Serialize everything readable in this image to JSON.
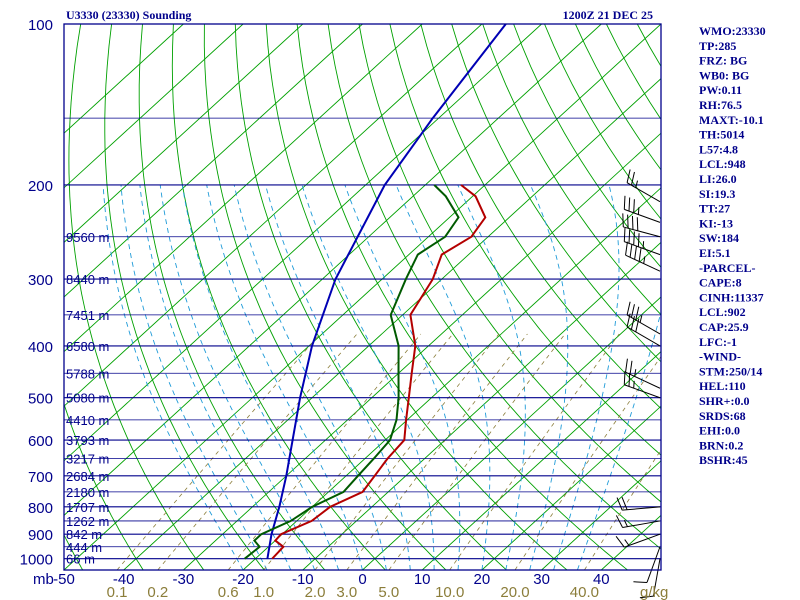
{
  "header": {
    "title": "U3330 (23330) Sounding",
    "time": "1200Z 21 DEC 25"
  },
  "indices": [
    "WMO:23330",
    "TP:285",
    "FRZ: BG",
    "WB0: BG",
    "PW:0.11",
    "RH:76.5",
    "MAXT:-10.1",
    "TH:5014",
    "L57:4.8",
    "LCL:948",
    "LI:26.0",
    "SI:19.3",
    "TT:27",
    "KI:-13",
    "SW:184",
    "EI:5.1",
    "-PARCEL-",
    "CAPE:8",
    "CINH:11337",
    "LCL:902",
    "CAP:25.9",
    "LFC:-1",
    "-WIND-",
    "STM:250/14",
    "HEL:110",
    "SHR+:0.0",
    "SRDS:68",
    "EHI:0.0",
    "BRN:0.2",
    "BSHR:45"
  ],
  "colors": {
    "background": "#ffffff",
    "frame": "#00008b",
    "isobar": "#00008b",
    "isotherm": "#00a000",
    "dry_adiabat": "#00a000",
    "moist_adiabat": "#1f9bd8",
    "mixing_ratio": "#8b7d3a",
    "temperature": "#b40000",
    "dewpoint": "#005a00",
    "parcel": "#0000b4",
    "wind_barb": "#000000"
  },
  "chart_data": {
    "type": "line",
    "diagram": "skew-T log-P",
    "pressure_unit_label": "mb",
    "mixing_ratio_unit_label": "g/kg",
    "pressure_levels": [
      100,
      200,
      300,
      400,
      500,
      600,
      700,
      800,
      900,
      1000
    ],
    "height_labels": [
      {
        "p": 250,
        "h": "9560 m"
      },
      {
        "p": 300,
        "h": "8440 m"
      },
      {
        "p": 350,
        "h": "7451 m"
      },
      {
        "p": 400,
        "h": "6580 m"
      },
      {
        "p": 450,
        "h": "5788 m"
      },
      {
        "p": 500,
        "h": "5080 m"
      },
      {
        "p": 550,
        "h": "4410 m"
      },
      {
        "p": 600,
        "h": "3793 m"
      },
      {
        "p": 650,
        "h": "3217 m"
      },
      {
        "p": 700,
        "h": "2684 m"
      },
      {
        "p": 750,
        "h": "2180 m"
      },
      {
        "p": 800,
        "h": "1707 m"
      },
      {
        "p": 850,
        "h": "1262 m"
      },
      {
        "p": 900,
        "h": "842 m"
      },
      {
        "p": 950,
        "h": "444 m"
      },
      {
        "p": 1000,
        "h": "66 m"
      }
    ],
    "temperature_ticks": [
      -50,
      -40,
      -30,
      -20,
      -10,
      0,
      10,
      20,
      30,
      40
    ],
    "mixing_ratio_ticks": [
      "0.1",
      "0.2",
      "0.6",
      "1.0",
      "2.0",
      "3.0",
      "5.0",
      "10.0",
      "20.0",
      "40.0"
    ],
    "xlim_celsius_at_1050mb": [
      -50,
      50
    ],
    "ylim_mb": [
      100,
      1050
    ],
    "temperature": [
      {
        "p": 1000,
        "t": -17.2
      },
      {
        "p": 950,
        "t": -17.5
      },
      {
        "p": 925,
        "t": -20.0
      },
      {
        "p": 900,
        "t": -20.2
      },
      {
        "p": 850,
        "t": -17.5
      },
      {
        "p": 800,
        "t": -17.0
      },
      {
        "p": 750,
        "t": -14.3
      },
      {
        "p": 700,
        "t": -15.2
      },
      {
        "p": 650,
        "t": -16.2
      },
      {
        "p": 600,
        "t": -16.8
      },
      {
        "p": 550,
        "t": -20.2
      },
      {
        "p": 500,
        "t": -23.8
      },
      {
        "p": 450,
        "t": -27.8
      },
      {
        "p": 400,
        "t": -32.2
      },
      {
        "p": 350,
        "t": -38.7
      },
      {
        "p": 300,
        "t": -41.5
      },
      {
        "p": 270,
        "t": -44.5
      },
      {
        "p": 250,
        "t": -42.8
      },
      {
        "p": 230,
        "t": -44.0
      },
      {
        "p": 210,
        "t": -49.5
      },
      {
        "p": 200,
        "t": -54.0
      }
    ],
    "dewpoint": [
      {
        "p": 1000,
        "t": -21.8
      },
      {
        "p": 950,
        "t": -21.5
      },
      {
        "p": 925,
        "t": -23.5
      },
      {
        "p": 900,
        "t": -23.5
      },
      {
        "p": 850,
        "t": -21.0
      },
      {
        "p": 800,
        "t": -20.0
      },
      {
        "p": 750,
        "t": -17.5
      },
      {
        "p": 700,
        "t": -18.0
      },
      {
        "p": 650,
        "t": -18.5
      },
      {
        "p": 600,
        "t": -19.2
      },
      {
        "p": 550,
        "t": -21.8
      },
      {
        "p": 500,
        "t": -25.5
      },
      {
        "p": 450,
        "t": -30.0
      },
      {
        "p": 400,
        "t": -35.0
      },
      {
        "p": 350,
        "t": -42.0
      },
      {
        "p": 300,
        "t": -46.0
      },
      {
        "p": 270,
        "t": -48.5
      },
      {
        "p": 250,
        "t": -47.2
      },
      {
        "p": 230,
        "t": -48.5
      },
      {
        "p": 210,
        "t": -54.5
      },
      {
        "p": 200,
        "t": -58.5
      }
    ],
    "parcel": [
      {
        "p": 100,
        "t": -76
      },
      {
        "p": 150,
        "t": -71
      },
      {
        "p": 200,
        "t": -66.8
      },
      {
        "p": 300,
        "t": -57.8
      },
      {
        "p": 400,
        "t": -49.5
      },
      {
        "p": 500,
        "t": -42
      },
      {
        "p": 600,
        "t": -35.5
      },
      {
        "p": 700,
        "t": -30
      },
      {
        "p": 800,
        "t": -25.5
      },
      {
        "p": 900,
        "t": -21.8
      },
      {
        "p": 1000,
        "t": -18
      }
    ],
    "wind_barbs": [
      {
        "p": 1000,
        "dir": 190,
        "spd": 10
      },
      {
        "p": 950,
        "dir": 200,
        "spd": 10
      },
      {
        "p": 900,
        "dir": 250,
        "spd": 15
      },
      {
        "p": 850,
        "dir": 260,
        "spd": 15
      },
      {
        "p": 800,
        "dir": 265,
        "spd": 20
      },
      {
        "p": 500,
        "dir": 290,
        "spd": 25
      },
      {
        "p": 480,
        "dir": 295,
        "spd": 25
      },
      {
        "p": 400,
        "dir": 300,
        "spd": 30
      },
      {
        "p": 380,
        "dir": 300,
        "spd": 35
      },
      {
        "p": 290,
        "dir": 295,
        "spd": 45
      },
      {
        "p": 270,
        "dir": 290,
        "spd": 45
      },
      {
        "p": 250,
        "dir": 285,
        "spd": 40
      },
      {
        "p": 235,
        "dir": 290,
        "spd": 35
      },
      {
        "p": 215,
        "dir": 300,
        "spd": 25
      }
    ]
  }
}
